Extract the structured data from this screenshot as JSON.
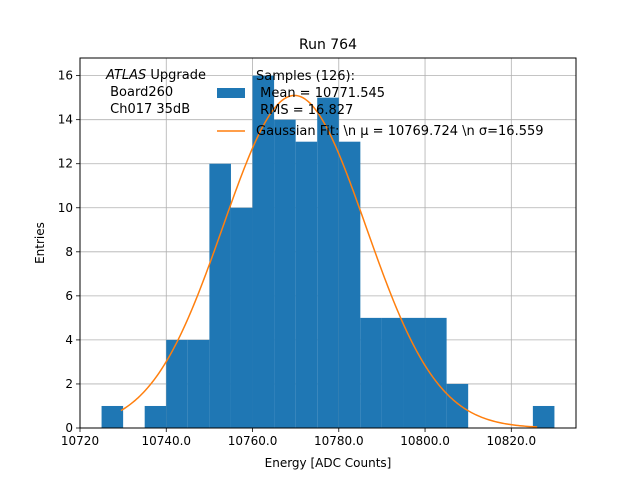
{
  "chart_data": {
    "type": "bar",
    "title": "Run 764",
    "xlabel": "Energy [ADC Counts]",
    "ylabel": "Entries",
    "xlim": [
      10720,
      10835
    ],
    "ylim": [
      0,
      16.8
    ],
    "grid": true,
    "bin_edges": [
      10725,
      10730,
      10735,
      10740,
      10745,
      10750,
      10755,
      10760,
      10765,
      10770,
      10775,
      10780,
      10785,
      10790,
      10795,
      10800,
      10805,
      10810,
      10815,
      10820,
      10825,
      10830
    ],
    "counts": [
      1,
      0,
      1,
      4,
      4,
      12,
      10,
      16,
      14,
      13,
      15,
      13,
      5,
      5,
      5,
      5,
      2,
      0,
      0,
      0,
      1
    ],
    "x_ticks": [
      10720,
      10740,
      10760,
      10780,
      10800,
      10820
    ],
    "x_tick_labels": [
      "10720",
      "10740.0",
      "10760.0",
      "10780.0",
      "10800.0",
      "10820.0"
    ],
    "y_ticks": [
      0,
      2,
      4,
      6,
      8,
      10,
      12,
      14,
      16
    ],
    "y_tick_labels": [
      "0",
      "2",
      "4",
      "6",
      "8",
      "10",
      "12",
      "14",
      "16"
    ],
    "fit": {
      "mu": 10769.724,
      "sigma": 16.559,
      "amplitude": 15.1,
      "x_range": [
        10729.5,
        10826
      ]
    },
    "annotation": {
      "line1_italic": "ATLAS",
      "line1_rest": " Upgrade",
      "line2": " Board260",
      "line3": " Ch017 35dB"
    },
    "legend": {
      "placement": "top-center",
      "entries": [
        {
          "label_lines": [
            "Samples (126):",
            " Mean = 10771.545",
            " RMS = 16.827"
          ],
          "type": "bar"
        },
        {
          "label_lines": [
            "Gaussian Fit: \\n μ = 10769.724 \\n σ=16.559"
          ],
          "type": "line"
        }
      ]
    },
    "colors": {
      "bars": "#1f77b4",
      "fit": "#ff7f0e",
      "grid": "#b0b0b0"
    }
  }
}
